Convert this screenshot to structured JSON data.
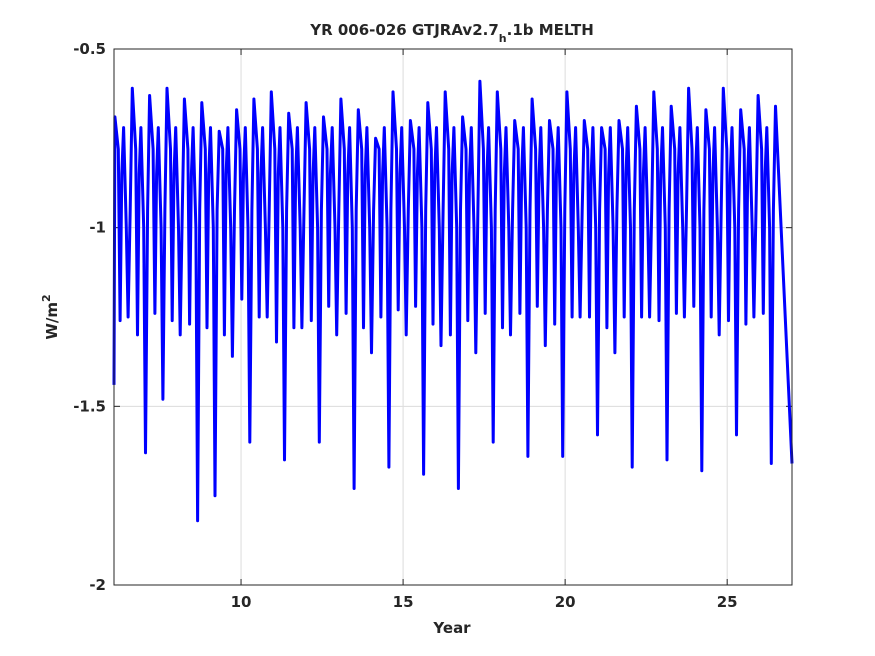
{
  "chart_data": {
    "type": "line",
    "title_main": "YR 006-026 GTJRAv2.7",
    "title_sub": "h",
    "title_end": ".1b MELTH",
    "xlabel": "Year",
    "ylabel_base": "W/m",
    "ylabel_sup": "2",
    "xlim": [
      6.08,
      27.0
    ],
    "ylim": [
      -2.0,
      -0.5
    ],
    "xticks": [
      10,
      15,
      20,
      25
    ],
    "xtick_labels": [
      "10",
      "15",
      "20",
      "25"
    ],
    "yticks": [
      -0.5,
      -1,
      -1.5,
      -2
    ],
    "ytick_labels": [
      "-0.5",
      "-1",
      "-1.5",
      "-2"
    ],
    "grid": true,
    "line_color": "#0000ff",
    "series": [
      {
        "peaks": [
          -0.69,
          -0.61,
          -0.63,
          -0.61,
          -0.64,
          -0.65,
          -0.73,
          -0.67,
          -0.64,
          -0.62,
          -0.68,
          -0.65,
          -0.69,
          -0.64,
          -0.67,
          -0.75,
          -0.62,
          -0.7,
          -0.65,
          -0.62,
          -0.69,
          -0.59,
          -0.62,
          -0.7,
          -0.64,
          -0.7,
          -0.62,
          -0.7,
          -0.72,
          -0.7,
          -0.66,
          -0.62,
          -0.66,
          -0.61,
          -0.67,
          -0.61,
          -0.67,
          -0.63,
          -0.66
        ],
        "troughs": [
          -1.25,
          -1.63,
          -1.48,
          -1.3,
          -1.82,
          -1.75,
          -1.36,
          -1.6,
          -1.25,
          -1.65,
          -1.28,
          -1.6,
          -1.3,
          -1.73,
          -1.35,
          -1.67,
          -1.3,
          -1.69,
          -1.33,
          -1.73,
          -1.35,
          -1.6,
          -1.3,
          -1.64,
          -1.33,
          -1.64,
          -1.25,
          -1.58,
          -1.35,
          -1.67,
          -1.25,
          -1.65,
          -1.25,
          -1.68,
          -1.3,
          -1.58,
          -1.25,
          -1.66
        ],
        "secondary_dips": [
          -1.26,
          -1.3,
          -1.24,
          -1.26,
          -1.27,
          -1.28,
          -1.3,
          -1.2,
          -1.25,
          -1.32,
          -1.28,
          -1.26,
          -1.22,
          -1.24,
          -1.28,
          -1.25,
          -1.23,
          -1.22,
          -1.27,
          -1.3,
          -1.26,
          -1.24,
          -1.28,
          -1.24,
          -1.22,
          -1.27,
          -1.25,
          -1.25,
          -1.28,
          -1.25,
          -1.25,
          -1.26,
          -1.24,
          -1.22,
          -1.25,
          -1.26,
          -1.27,
          -1.24
        ],
        "start": -1.44,
        "end": -1.66
      }
    ]
  }
}
